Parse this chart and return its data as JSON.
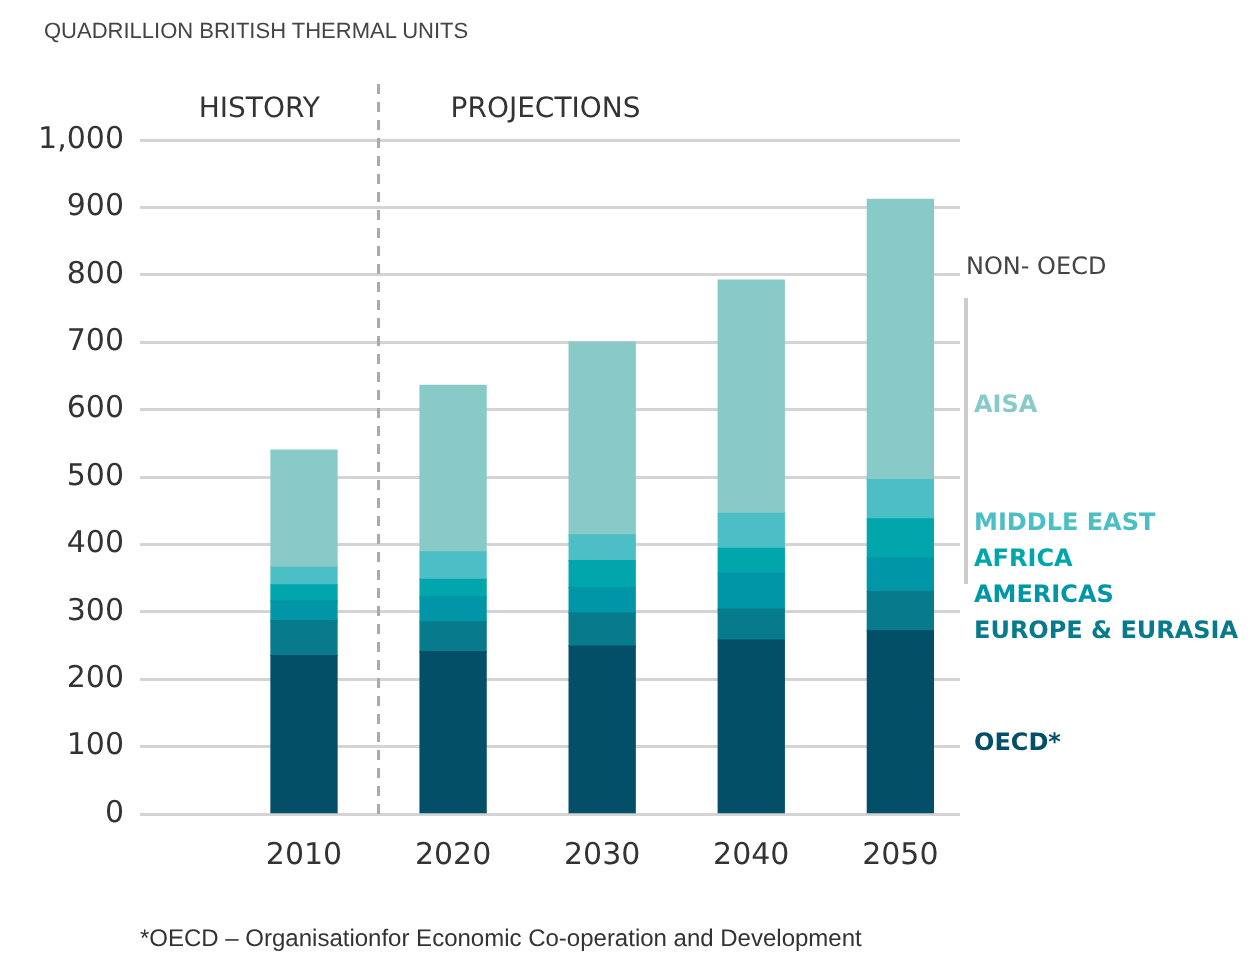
{
  "chart_data": {
    "type": "bar",
    "stacked": true,
    "ylabel": "QUADRILLION BRITISH THERMAL UNITS",
    "legend_title": "NON- OECD",
    "x": [
      2010,
      2020,
      2030,
      2040,
      2050
    ],
    "xlim": [
      1999,
      2054
    ],
    "xticks": [
      2010,
      2020,
      2030,
      2040,
      2050
    ],
    "ylim": [
      0,
      1000
    ],
    "yticks": [
      0,
      100,
      200,
      300,
      400,
      500,
      600,
      700,
      800,
      900,
      {
        "value": 1000,
        "label": "1,000"
      }
    ],
    "grid": "y",
    "legend": "right",
    "series": [
      {
        "name": "OECD*",
        "color": "#034f68",
        "values": [
          235,
          241,
          249,
          258,
          272
        ]
      },
      {
        "name": "EUROPE & EURASIA",
        "color": "#077a8b",
        "values": [
          52,
          44,
          49,
          46,
          58
        ]
      },
      {
        "name": "AMERICAS",
        "color": "#0096a8",
        "values": [
          29,
          37,
          38,
          53,
          50
        ]
      },
      {
        "name": "AFRICA",
        "color": "#00a6ab",
        "values": [
          24,
          26,
          40,
          37,
          58
        ]
      },
      {
        "name": "MIDDLE EAST",
        "color": "#4cbec5",
        "values": [
          26,
          41,
          38,
          52,
          58
        ]
      },
      {
        "name": "AISA",
        "color": "#88cac8",
        "values": [
          174,
          247,
          286,
          346,
          416
        ]
      }
    ],
    "ref_lines": [
      {
        "axis": "x",
        "value": 2015,
        "color": "#aaaaaa",
        "line_style": "dashed"
      }
    ],
    "annotations": [
      "HISTORY",
      "PROJECTIONS",
      "*OECD – Organisationfor Economic Co-operation and Development"
    ]
  }
}
